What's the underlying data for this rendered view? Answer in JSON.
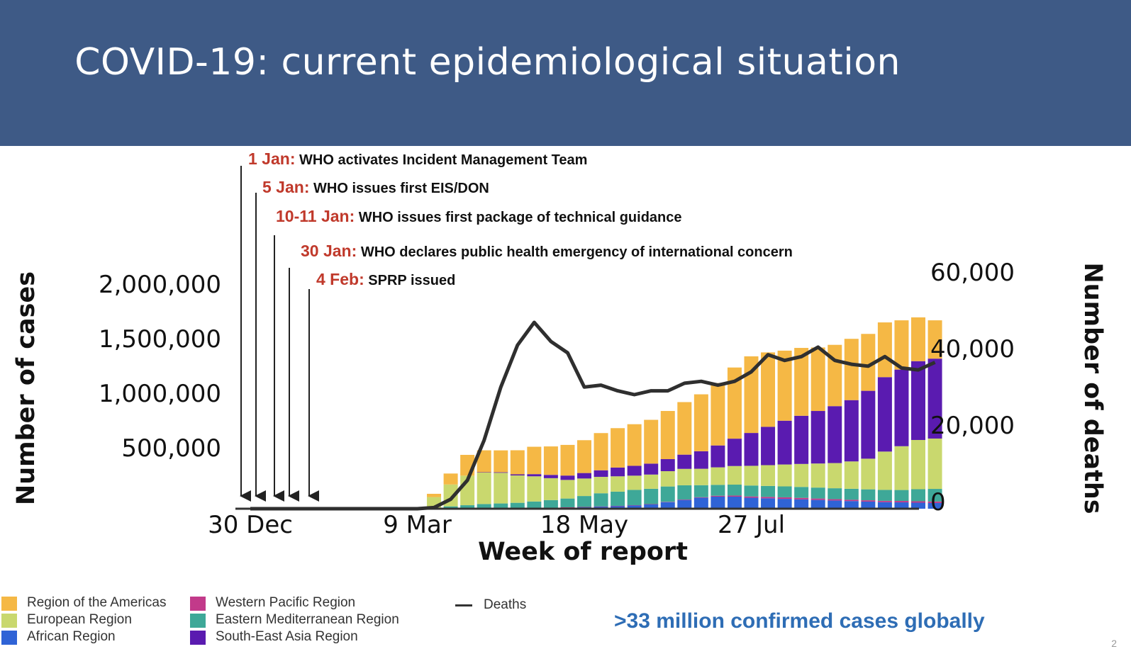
{
  "slide": {
    "title": "COVID-19: current epidemiological situation",
    "summary_bold": ">33 million confirmed cases globally",
    "summary_rest": "",
    "page_number": "2"
  },
  "colors": {
    "header_bg": "#3e5a86",
    "Americas": "#f5b845",
    "Europe": "#c9d86e",
    "SEAsia": "#5a1bb0",
    "EMed": "#3ea898",
    "Africa": "#2f63d6",
    "WPacific": "#c23a8a",
    "deaths": "#2f2f2f",
    "annotation_date": "#c0392b"
  },
  "chart_data": {
    "type": "bar",
    "stacked": true,
    "xlabel": "Week of report",
    "ylabel": "Number of cases",
    "y2label": "Number of deaths",
    "ylim": [
      0,
      2000000
    ],
    "y2lim": [
      0,
      60000
    ],
    "yticks": [
      "2,000,000",
      "1,500,000",
      "1,000,000",
      "500,000"
    ],
    "y2ticks": [
      "60,000",
      "40,000",
      "20,000",
      "0"
    ],
    "xticks": [
      {
        "label": "30 Dec",
        "week": 0
      },
      {
        "label": "9 Mar",
        "week": 10
      },
      {
        "label": "18 May",
        "week": 20
      },
      {
        "label": "27 Jul",
        "week": 30
      }
    ],
    "series": [
      {
        "name": "African Region",
        "color_key": "Africa",
        "values": [
          0,
          0,
          0,
          0,
          0,
          0,
          0,
          0,
          0,
          0,
          0,
          200,
          500,
          1000,
          1500,
          2000,
          3000,
          5000,
          8000,
          12000,
          15000,
          20000,
          25000,
          30000,
          40000,
          60000,
          80000,
          100000,
          110000,
          110000,
          100000,
          95000,
          90000,
          85000,
          80000,
          75000,
          70000,
          65000,
          60000,
          58000,
          55000,
          52000
        ]
      },
      {
        "name": "Western Pacific Region",
        "color_key": "WPacific",
        "values": [
          0,
          0,
          0,
          0,
          50,
          100,
          300,
          500,
          600,
          700,
          800,
          1000,
          1000,
          1000,
          1000,
          1000,
          1000,
          1000,
          1000,
          1000,
          1000,
          1000,
          1000,
          2000,
          2000,
          3000,
          4000,
          5000,
          8000,
          10000,
          12000,
          13000,
          14000,
          14000,
          13000,
          12000,
          12000,
          12000,
          12000,
          13000,
          13000,
          14000
        ]
      },
      {
        "name": "Eastern Mediterranean Region",
        "color_key": "EMed",
        "values": [
          0,
          0,
          0,
          0,
          0,
          0,
          0,
          0,
          0,
          0,
          0,
          5000,
          20000,
          30000,
          40000,
          45000,
          50000,
          60000,
          70000,
          80000,
          100000,
          120000,
          130000,
          140000,
          140000,
          140000,
          130000,
          110000,
          100000,
          100000,
          100000,
          100000,
          100000,
          100000,
          100000,
          100000,
          100000,
          100000,
          100000,
          100000,
          110000,
          115000
        ]
      },
      {
        "name": "European Region",
        "color_key": "Europe",
        "values": [
          0,
          0,
          0,
          0,
          0,
          0,
          0,
          0,
          0,
          0,
          5000,
          100000,
          200000,
          270000,
          290000,
          280000,
          250000,
          230000,
          200000,
          170000,
          160000,
          150000,
          140000,
          130000,
          130000,
          140000,
          150000,
          150000,
          160000,
          170000,
          180000,
          190000,
          200000,
          210000,
          220000,
          230000,
          250000,
          280000,
          350000,
          400000,
          450000,
          460000
        ]
      },
      {
        "name": "South-East Asia Region",
        "color_key": "SEAsia",
        "values": [
          0,
          0,
          0,
          0,
          0,
          0,
          0,
          0,
          0,
          0,
          0,
          0,
          0,
          0,
          1000,
          5000,
          10000,
          20000,
          30000,
          40000,
          50000,
          60000,
          80000,
          90000,
          100000,
          110000,
          130000,
          160000,
          200000,
          250000,
          300000,
          350000,
          400000,
          440000,
          480000,
          520000,
          560000,
          620000,
          680000,
          700000,
          720000,
          730000
        ]
      },
      {
        "name": "Region of the Americas",
        "color_key": "Americas",
        "values": [
          0,
          0,
          0,
          0,
          0,
          0,
          0,
          0,
          0,
          0,
          2000,
          30000,
          100000,
          190000,
          200000,
          200000,
          220000,
          250000,
          260000,
          280000,
          300000,
          340000,
          360000,
          380000,
          400000,
          440000,
          480000,
          520000,
          570000,
          650000,
          700000,
          680000,
          640000,
          620000,
          580000,
          560000,
          560000,
          520000,
          500000,
          450000,
          400000,
          350000
        ]
      }
    ],
    "deaths": [
      0,
      0,
      0,
      0,
      0,
      0,
      0,
      0,
      0,
      0,
      0,
      300,
      2500,
      7500,
      18000,
      32000,
      43000,
      49000,
      44000,
      41000,
      32000,
      32500,
      31000,
      30000,
      31000,
      31000,
      33000,
      33500,
      32500,
      33500,
      36000,
      40500,
      39000,
      40000,
      42500,
      39000,
      38000,
      37500,
      40000,
      37000,
      36500,
      38500
    ],
    "annotations": [
      {
        "date": "1 Jan:",
        "text": "WHO activates Incident Management Team"
      },
      {
        "date": "5 Jan:",
        "text": "WHO issues first EIS/DON"
      },
      {
        "date": "10-11 Jan:",
        "text": "WHO issues first package of technical guidance"
      },
      {
        "date": "30 Jan:",
        "text": "WHO declares public health emergency of international concern"
      },
      {
        "date": "4 Feb:",
        "text": "SPRP issued"
      }
    ],
    "legend": [
      {
        "label": "Region of the Americas",
        "color_key": "Americas"
      },
      {
        "label": "European Region",
        "color_key": "Europe"
      },
      {
        "label": "African Region",
        "color_key": "Africa"
      },
      {
        "label": "Western Pacific Region",
        "color_key": "WPacific"
      },
      {
        "label": "Eastern Mediterranean Region",
        "color_key": "EMed"
      },
      {
        "label": "South-East Asia Region",
        "color_key": "SEAsia"
      }
    ],
    "deaths_legend": "Deaths"
  }
}
